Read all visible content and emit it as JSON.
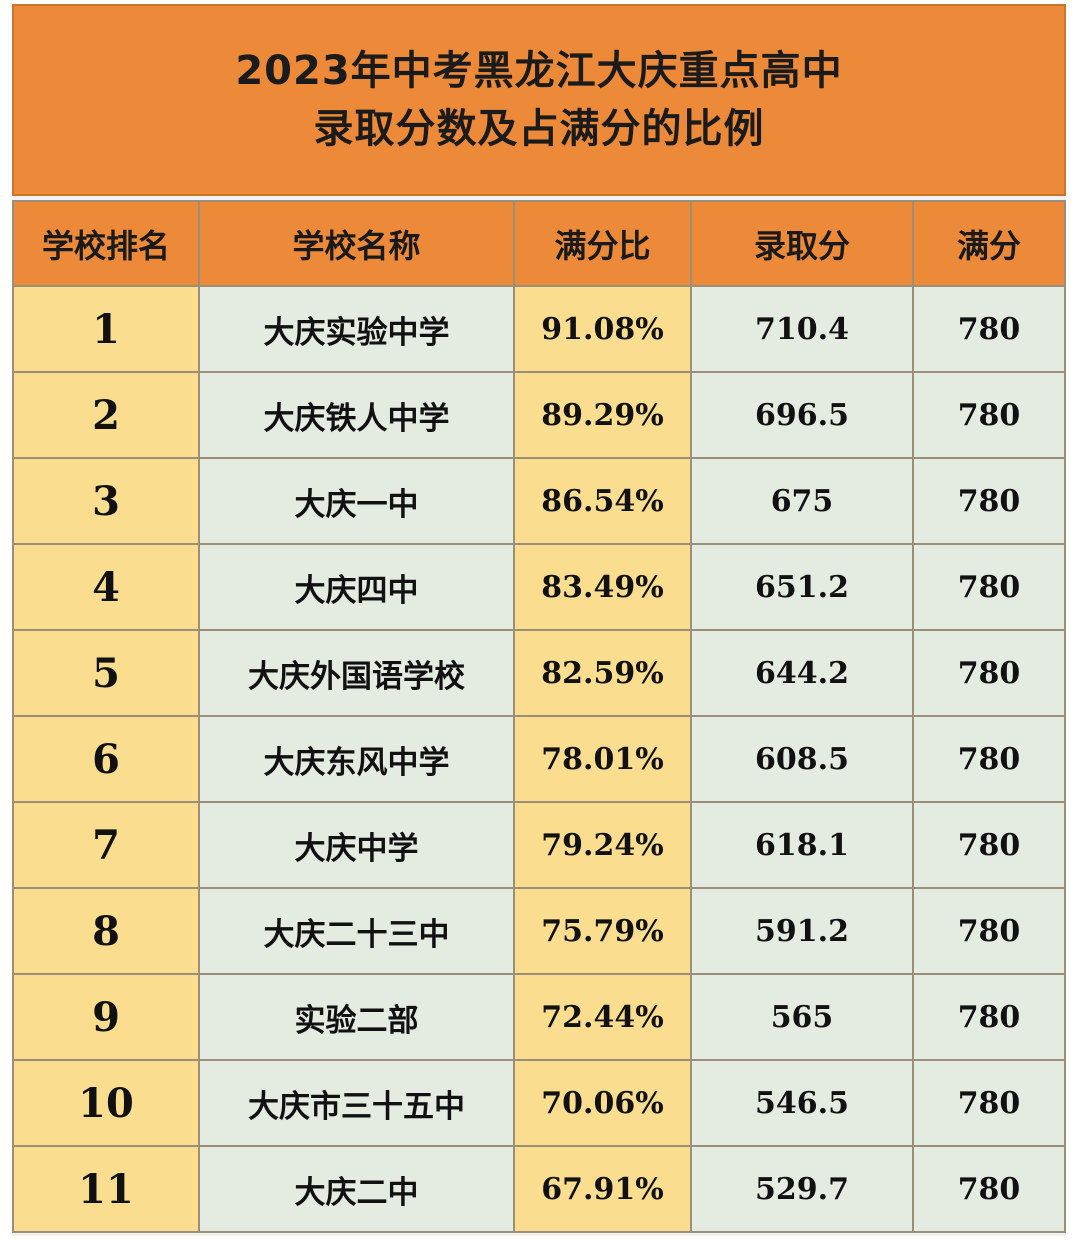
{
  "title": {
    "line1": "2023年中考黑龙江大庆重点高中",
    "line2": "录取分数及占满分的比例"
  },
  "table": {
    "headers": {
      "rank": "学校排名",
      "name": "学校名称",
      "ratio": "满分比",
      "score": "录取分",
      "full": "满分"
    },
    "rows": [
      {
        "rank": "1",
        "name": "大庆实验中学",
        "ratio": "91.08%",
        "score": "710.4",
        "full": "780"
      },
      {
        "rank": "2",
        "name": "大庆铁人中学",
        "ratio": "89.29%",
        "score": "696.5",
        "full": "780"
      },
      {
        "rank": "3",
        "name": "大庆一中",
        "ratio": "86.54%",
        "score": "675",
        "full": "780"
      },
      {
        "rank": "4",
        "name": "大庆四中",
        "ratio": "83.49%",
        "score": "651.2",
        "full": "780"
      },
      {
        "rank": "5",
        "name": "大庆外国语学校",
        "ratio": "82.59%",
        "score": "644.2",
        "full": "780"
      },
      {
        "rank": "6",
        "name": "大庆东风中学",
        "ratio": "78.01%",
        "score": "608.5",
        "full": "780"
      },
      {
        "rank": "7",
        "name": "大庆中学",
        "ratio": "79.24%",
        "score": "618.1",
        "full": "780"
      },
      {
        "rank": "8",
        "name": "大庆二十三中",
        "ratio": "75.79%",
        "score": "591.2",
        "full": "780"
      },
      {
        "rank": "9",
        "name": "实验二部",
        "ratio": "72.44%",
        "score": "565",
        "full": "780"
      },
      {
        "rank": "10",
        "name": "大庆市三十五中",
        "ratio": "70.06%",
        "score": "546.5",
        "full": "780"
      },
      {
        "rank": "11",
        "name": "大庆二中",
        "ratio": "67.91%",
        "score": "529.7",
        "full": "780"
      }
    ]
  },
  "colors": {
    "header_orange": "#ec8a3a",
    "rank_ratio_yellow": "#fbdd90",
    "cell_light_green": "#e4ece2"
  }
}
